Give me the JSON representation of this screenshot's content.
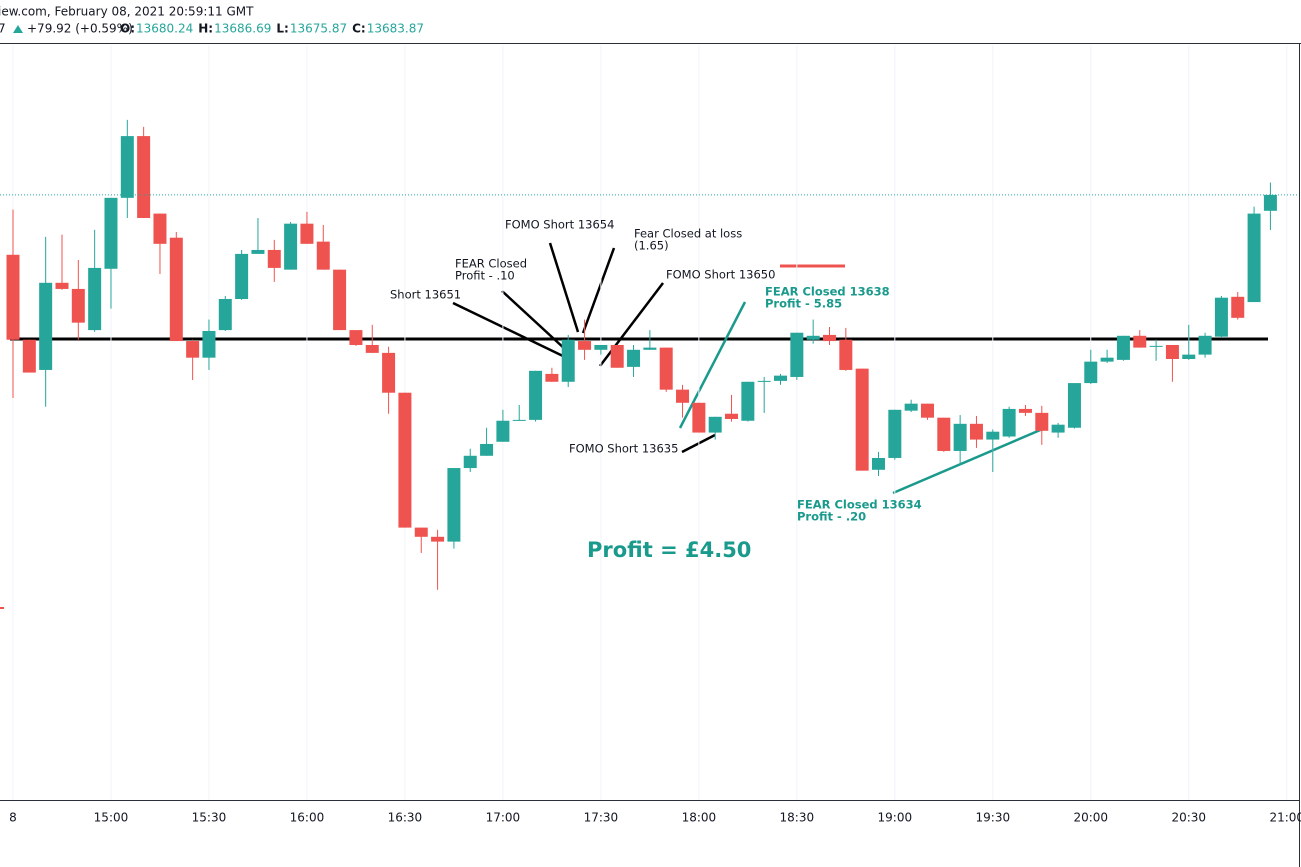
{
  "header": {
    "source": "iew.com, February 08, 2021 20:59:11 GMT",
    "prefix": "7",
    "change": "+79.92 (+0.59%)",
    "ohlc": [
      {
        "label": "O:",
        "value": "13680.24"
      },
      {
        "label": "H:",
        "value": "13686.69"
      },
      {
        "label": "L:",
        "value": "13675.87"
      },
      {
        "label": "C:",
        "value": "13683.87"
      }
    ]
  },
  "chart_data": {
    "type": "candlestick",
    "up_color": "#26a69a",
    "down_color": "#ef5350",
    "ylim": [
      13545.7,
      13718.1
    ],
    "xticks": [
      {
        "value": 0,
        "label": "8"
      },
      {
        "value": 6,
        "label": "15:00"
      },
      {
        "value": 12,
        "label": "15:30"
      },
      {
        "value": 18,
        "label": "16:00"
      },
      {
        "value": 24,
        "label": "16:30"
      },
      {
        "value": 30,
        "label": "17:00"
      },
      {
        "value": 36,
        "label": "17:30"
      },
      {
        "value": 42,
        "label": "18:00"
      },
      {
        "value": 48,
        "label": "18:30"
      },
      {
        "value": 54,
        "label": "19:00"
      },
      {
        "value": 60,
        "label": "19:30"
      },
      {
        "value": 66,
        "label": "20:00"
      },
      {
        "value": 72,
        "label": "20:30"
      },
      {
        "value": 78,
        "label": "21:00"
      }
    ],
    "open": [
      13670.2,
      13650.8,
      13643.9,
      13663.8,
      13662.4,
      13653.0,
      13667.0,
      13683.2,
      13697.3,
      13679.6,
      13674.1,
      13650.5,
      13646.7,
      13653.0,
      13660.1,
      13670.4,
      13671.3,
      13666.8,
      13677.3,
      13673.2,
      13666.8,
      13653.0,
      13649.6,
      13647.8,
      13638.7,
      13607.9,
      13605.8,
      13604.7,
      13621.5,
      13624.3,
      13627.5,
      13632.3,
      13632.5,
      13643.0,
      13641.2,
      13650.5,
      13648.5,
      13649.6,
      13644.6,
      13648.5,
      13649.0,
      13639.4,
      13636.4,
      13629.6,
      13633.9,
      13632.3,
      13641.2,
      13641.4,
      13642.3,
      13650.8,
      13651.9,
      13650.8,
      13644.2,
      13621.1,
      13623.8,
      13634.6,
      13636.2,
      13633.0,
      13625.4,
      13631.6,
      13628.0,
      13628.7,
      13635.0,
      13634.1,
      13629.6,
      13630.7,
      13640.9,
      13645.8,
      13646.2,
      13651.7,
      13649.2,
      13649.6,
      13646.4,
      13647.4,
      13651.5,
      13660.6,
      13659.4,
      13680.24
    ],
    "high": [
      13680.5,
      13650.8,
      13674.3,
      13674.8,
      13669.0,
      13675.9,
      13683.2,
      13701.0,
      13699.4,
      13679.6,
      13675.4,
      13650.8,
      13655.4,
      13660.8,
      13671.3,
      13678.6,
      13673.6,
      13677.7,
      13680.0,
      13677.0,
      13666.8,
      13653.0,
      13654.2,
      13649.2,
      13638.7,
      13607.9,
      13607.4,
      13621.5,
      13625.9,
      13630.7,
      13634.8,
      13635.9,
      13643.7,
      13644.4,
      13651.9,
      13655.4,
      13649.6,
      13649.6,
      13649.6,
      13653.0,
      13649.0,
      13640.5,
      13636.4,
      13633.2,
      13638.2,
      13641.2,
      13642.3,
      13643.0,
      13652.4,
      13655.4,
      13653.7,
      13653.5,
      13644.2,
      13625.2,
      13634.8,
      13637.1,
      13636.2,
      13633.0,
      13633.6,
      13633.4,
      13630.3,
      13635.5,
      13635.9,
      13635.7,
      13631.8,
      13640.9,
      13648.5,
      13648.5,
      13651.7,
      13653.0,
      13650.8,
      13649.6,
      13654.2,
      13652.4,
      13660.8,
      13661.7,
      13681.2,
      13686.69
    ],
    "low": [
      13637.5,
      13643.3,
      13635.5,
      13662.2,
      13650.8,
      13652.6,
      13657.9,
      13678.6,
      13678.6,
      13665.8,
      13650.5,
      13641.6,
      13643.9,
      13652.8,
      13659.9,
      13670.4,
      13664.0,
      13666.8,
      13672.7,
      13666.8,
      13653.0,
      13649.4,
      13647.8,
      13633.9,
      13607.9,
      13602.1,
      13593.7,
      13603.1,
      13620.6,
      13624.3,
      13627.5,
      13632.3,
      13632.1,
      13641.2,
      13640.0,
      13646.2,
      13647.4,
      13644.4,
      13642.3,
      13648.5,
      13638.9,
      13633.0,
      13629.6,
      13628.0,
      13632.1,
      13632.1,
      13634.1,
      13640.5,
      13641.6,
      13649.9,
      13649.6,
      13643.7,
      13620.9,
      13619.7,
      13623.4,
      13634.3,
      13632.5,
      13625.2,
      13622.2,
      13626.1,
      13620.6,
      13628.4,
      13633.4,
      13626.8,
      13628.4,
      13630.5,
      13640.7,
      13645.5,
      13646.0,
      13649.0,
      13646.0,
      13641.2,
      13646.2,
      13646.7,
      13651.2,
      13655.4,
      13659.4,
      13675.87
    ],
    "close": [
      13650.8,
      13643.3,
      13663.8,
      13662.4,
      13654.7,
      13667.2,
      13683.2,
      13697.3,
      13678.6,
      13672.7,
      13650.5,
      13646.7,
      13652.8,
      13660.1,
      13670.4,
      13671.3,
      13667.2,
      13677.3,
      13672.7,
      13666.8,
      13653.0,
      13649.6,
      13647.8,
      13638.7,
      13607.9,
      13605.8,
      13604.7,
      13621.5,
      13624.3,
      13627.0,
      13632.3,
      13632.5,
      13643.7,
      13641.2,
      13650.8,
      13648.5,
      13649.6,
      13644.4,
      13648.5,
      13649.0,
      13639.4,
      13636.4,
      13629.6,
      13633.2,
      13632.7,
      13641.2,
      13641.4,
      13642.6,
      13652.4,
      13651.7,
      13650.5,
      13643.9,
      13620.9,
      13623.8,
      13634.8,
      13636.2,
      13633.0,
      13625.4,
      13631.6,
      13628.0,
      13629.8,
      13635.0,
      13634.1,
      13630.0,
      13631.4,
      13640.9,
      13645.8,
      13646.7,
      13651.7,
      13649.0,
      13649.4,
      13646.4,
      13647.4,
      13651.7,
      13660.4,
      13655.8,
      13679.6,
      13683.87
    ],
    "annotations": [
      {
        "lines": [
          "FOMO Short 13654"
        ],
        "color": "#131722"
      },
      {
        "lines": [
          "Fear Closed at loss",
          "(1.65)"
        ],
        "color": "#131722"
      },
      {
        "lines": [
          "FEAR Closed",
          "Profit - .10"
        ],
        "color": "#131722"
      },
      {
        "lines": [
          "FOMO Short 13650"
        ],
        "color": "#131722"
      },
      {
        "lines": [
          "Short 13651"
        ],
        "color": "#131722"
      },
      {
        "lines": [
          "FEAR Closed 13638",
          "Profit - 5.85"
        ],
        "color": "#1a9a8c"
      },
      {
        "lines": [
          "FOMO Short 13635"
        ],
        "color": "#131722"
      },
      {
        "lines": [
          "FEAR Closed 13634",
          "Profit - .20"
        ],
        "color": "#1a9a8c"
      },
      {
        "lines": [
          "Profit = £4.50"
        ],
        "color": "#1a9a8c"
      }
    ]
  }
}
